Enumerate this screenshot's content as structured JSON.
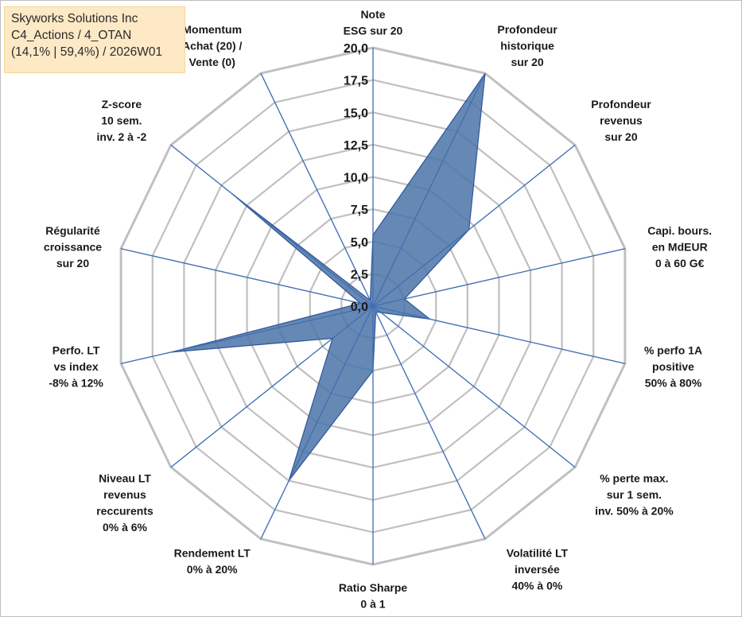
{
  "infobox": {
    "line1": "Skyworks Solutions Inc",
    "line2": "C4_Actions / 4_OTAN",
    "line3": "(14,1% | 59,4%) / 2026W01"
  },
  "colors": {
    "grid": "#c0c0c0",
    "spoke": "#3f6fb5",
    "fill": "#4a73a8",
    "fill_stroke": "#2f5597"
  },
  "chart_data": {
    "type": "radar",
    "title": "",
    "rmin": 0,
    "rmax": 20,
    "tick_step": 2.5,
    "tick_labels": [
      "0,0",
      "2,5",
      "5,0",
      "7,5",
      "10,0",
      "12,5",
      "15,0",
      "17,5",
      "20,0"
    ],
    "axes": [
      {
        "label": [
          "Note",
          "ESG sur 20"
        ],
        "value": 5.5
      },
      {
        "label": [
          "Profondeur",
          "historique",
          "sur 20"
        ],
        "value": 20.0
      },
      {
        "label": [
          "Profondeur",
          "revenus",
          "sur 20"
        ],
        "value": 9.5
      },
      {
        "label": [
          "Capi. bours.",
          "en MdEUR",
          "0 à 60 G€"
        ],
        "value": 2.5
      },
      {
        "label": [
          "% perfo 1A",
          "positive",
          "50% à 80%"
        ],
        "value": 4.5
      },
      {
        "label": [
          "% perte max.",
          "sur 1 sem.",
          "inv. 50% à 20%"
        ],
        "value": 0.8
      },
      {
        "label": [
          "Volatilité LT",
          "inversée",
          "40% à 0%"
        ],
        "value": 0.5
      },
      {
        "label": [
          "Ratio Sharpe",
          "0 à 1"
        ],
        "value": 5.0
      },
      {
        "label": [
          "Rendement LT",
          "0% à 20%"
        ],
        "value": 15.0
      },
      {
        "label": [
          "Niveau LT",
          "revenus",
          "reccurents",
          "0% à 6%"
        ],
        "value": 4.0
      },
      {
        "label": [
          "Perfo. LT",
          "vs index",
          "-8% à 12%"
        ],
        "value": 16.0
      },
      {
        "label": [
          "Régularité",
          "croissance",
          "sur 20"
        ],
        "value": 1.0
      },
      {
        "label": [
          "Z-score",
          "10 sem.",
          "inv. 2 à -2"
        ],
        "value": 14.0
      },
      {
        "label": [
          "Momentum",
          "Achat (20) /",
          "Vente (0)"
        ],
        "value": 0.5
      }
    ]
  }
}
